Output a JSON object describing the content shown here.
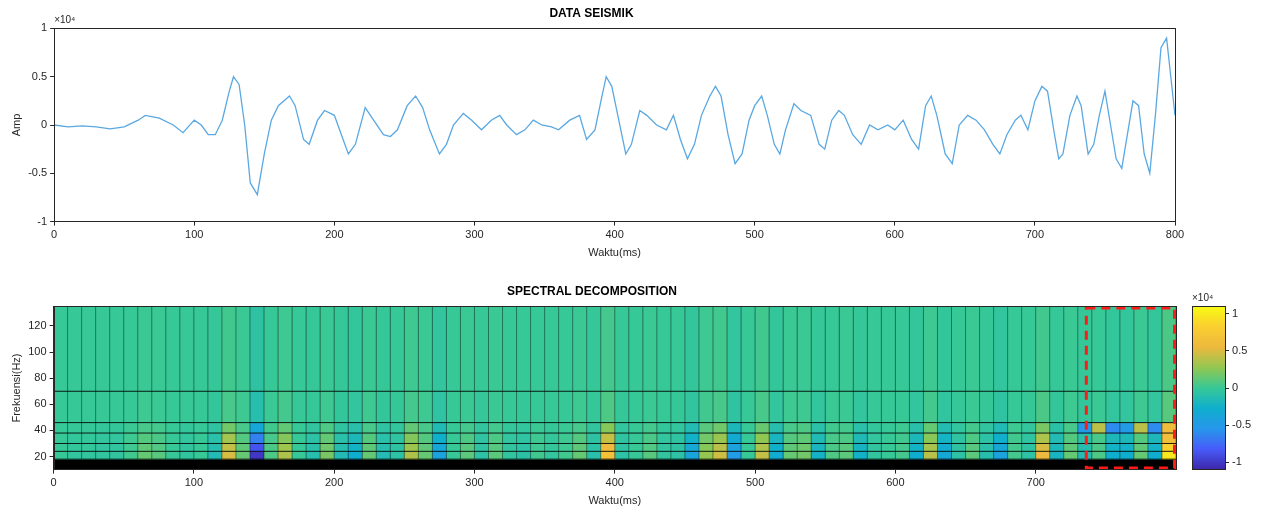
{
  "chart_data": [
    {
      "type": "line",
      "title": "DATA SEISMIK",
      "x_label": "Waktu(ms)",
      "y_label": "Amp",
      "y_multiplier_label": "×10⁴",
      "color": "#5aa8e2",
      "x": [
        0,
        10,
        20,
        30,
        40,
        50,
        60,
        65,
        75,
        85,
        92,
        100,
        105,
        110,
        115,
        120,
        125,
        128,
        132,
        136,
        140,
        145,
        150,
        155,
        160,
        168,
        172,
        178,
        182,
        188,
        193,
        200,
        205,
        210,
        215,
        222,
        228,
        235,
        240,
        245,
        252,
        258,
        263,
        268,
        275,
        280,
        285,
        292,
        298,
        305,
        312,
        318,
        323,
        330,
        336,
        342,
        348,
        355,
        360,
        368,
        375,
        380,
        386,
        391,
        394,
        398,
        403,
        408,
        412,
        418,
        423,
        430,
        437,
        442,
        447,
        452,
        457,
        462,
        468,
        472,
        476,
        481,
        486,
        491,
        496,
        500,
        505,
        509,
        514,
        518,
        522,
        528,
        533,
        540,
        546,
        550,
        555,
        560,
        564,
        570,
        576,
        582,
        588,
        595,
        600,
        606,
        612,
        617,
        622,
        626,
        630,
        636,
        641,
        646,
        652,
        658,
        664,
        670,
        675,
        680,
        686,
        690,
        695,
        700,
        705,
        709,
        714,
        717,
        720,
        725,
        730,
        733,
        738,
        742,
        746,
        750,
        754,
        758,
        762,
        766,
        770,
        774,
        778,
        782,
        786,
        790,
        794,
        797,
        800
      ],
      "values": [
        0,
        -0.02,
        -0.01,
        -0.02,
        -0.04,
        -0.02,
        0.05,
        0.1,
        0.07,
        0,
        -0.08,
        0.05,
        0,
        -0.1,
        -0.1,
        0.05,
        0.35,
        0.5,
        0.42,
        0,
        -0.6,
        -0.72,
        -0.3,
        0.05,
        0.2,
        0.3,
        0.2,
        -0.15,
        -0.2,
        0.05,
        0.15,
        0.1,
        -0.1,
        -0.3,
        -0.2,
        0.18,
        0.05,
        -0.1,
        -0.12,
        -0.05,
        0.2,
        0.3,
        0.18,
        -0.05,
        -0.3,
        -0.2,
        0,
        0.12,
        0.05,
        -0.05,
        0.05,
        0.1,
        0,
        -0.1,
        -0.05,
        0.05,
        0,
        -0.02,
        -0.05,
        0.05,
        0.1,
        -0.15,
        -0.05,
        0.3,
        0.5,
        0.4,
        0.05,
        -0.3,
        -0.2,
        0.15,
        0.1,
        0,
        -0.05,
        0.1,
        -0.15,
        -0.35,
        -0.2,
        0.1,
        0.3,
        0.4,
        0.3,
        -0.1,
        -0.4,
        -0.3,
        0.05,
        0.2,
        0.3,
        0.1,
        -0.2,
        -0.3,
        -0.05,
        0.22,
        0.15,
        0.1,
        -0.2,
        -0.25,
        0.05,
        0.15,
        0.1,
        -0.1,
        -0.2,
        0,
        -0.05,
        0,
        -0.05,
        0.05,
        -0.15,
        -0.25,
        0.2,
        0.3,
        0.1,
        -0.3,
        -0.4,
        0,
        0.1,
        0.05,
        -0.05,
        -0.2,
        -0.3,
        -0.1,
        0.05,
        0.1,
        -0.05,
        0.25,
        0.4,
        0.35,
        -0.1,
        -0.35,
        -0.3,
        0.1,
        0.3,
        0.2,
        -0.3,
        -0.2,
        0.1,
        0.35,
        0,
        -0.35,
        -0.45,
        -0.1,
        0.25,
        0.2,
        -0.3,
        -0.5,
        0.1,
        0.8,
        0.9,
        0.5,
        0.1
      ],
      "xlim": [
        0,
        800
      ],
      "xticks": [
        0,
        100,
        200,
        300,
        400,
        500,
        600,
        700,
        800
      ],
      "ylim": [
        -1,
        1
      ],
      "yticks": [
        -1,
        -0.5,
        0,
        0.5,
        1
      ],
      "grid": false
    },
    {
      "type": "heatmap",
      "title": "SPECTRAL DECOMPOSITION",
      "x_label": "Waktu(ms)",
      "y_label": "Frekuensi(Hz)",
      "x_bins": [
        0,
        10,
        20,
        30,
        40,
        50,
        60,
        70,
        80,
        90,
        100,
        110,
        120,
        130,
        140,
        150,
        160,
        170,
        180,
        190,
        200,
        210,
        220,
        230,
        240,
        250,
        260,
        270,
        280,
        290,
        300,
        310,
        320,
        330,
        340,
        350,
        360,
        370,
        380,
        390,
        400,
        410,
        420,
        430,
        440,
        450,
        460,
        470,
        480,
        490,
        500,
        510,
        520,
        530,
        540,
        550,
        560,
        570,
        580,
        590,
        600,
        610,
        620,
        630,
        640,
        650,
        660,
        670,
        680,
        690,
        700,
        710,
        720,
        730,
        740,
        750,
        760,
        770,
        780,
        790,
        800
      ],
      "y_bins": [
        18,
        24,
        30,
        38,
        46,
        70,
        135
      ],
      "cells": [
        [
          0,
          -0.03,
          -0.03,
          -0.04,
          -0.04,
          0.03,
          0.14,
          0.1,
          0,
          -0.04,
          0,
          -0.14,
          0.49,
          0.14,
          -1.01,
          0.07,
          0.36,
          0,
          -0.11,
          0.2,
          -0.14,
          -0.28,
          0.14,
          -0.14,
          -0.07,
          0.36,
          0.14,
          -0.42,
          0,
          0.11,
          -0.07,
          0.11,
          -0.04,
          -0.08,
          0.03,
          -0.03,
          0.03,
          0.14,
          -0.1,
          0.67,
          -0.07,
          0,
          0.1,
          -0.04,
          -0.07,
          -0.39,
          0.28,
          0.46,
          -0.49,
          0,
          0.42,
          -0.31,
          0.14,
          0.18,
          -0.24,
          0.07,
          0.11,
          -0.25,
          -0.04,
          0,
          0.04,
          -0.28,
          0.39,
          -0.35,
          -0.07,
          0.11,
          -0.11,
          -0.42,
          0.04,
          -0.07,
          0.56,
          -0.21,
          0.14,
          -0.14,
          0.07,
          -0.28,
          -0.28,
          0.14,
          -0.28,
          0.98
        ],
        [
          0,
          -0.02,
          -0.02,
          -0.04,
          -0.04,
          0.02,
          0.12,
          0.08,
          0,
          -0.04,
          0,
          -0.12,
          0.42,
          0.12,
          -0.86,
          0.06,
          0.31,
          0,
          -0.1,
          0.17,
          -0.12,
          -0.24,
          0.12,
          -0.12,
          -0.06,
          0.31,
          0.12,
          -0.36,
          0,
          0.1,
          -0.06,
          0.1,
          -0.04,
          -0.07,
          0.02,
          -0.02,
          0.02,
          0.12,
          -0.08,
          0.58,
          -0.06,
          0,
          0.08,
          -0.04,
          -0.06,
          -0.34,
          0.24,
          0.4,
          -0.42,
          0,
          0.36,
          -0.26,
          0.12,
          0.16,
          -0.2,
          0.06,
          0.1,
          -0.22,
          -0.04,
          0,
          0.04,
          -0.24,
          0.34,
          -0.3,
          -0.06,
          0.1,
          -0.1,
          -0.36,
          0.04,
          -0.06,
          0.48,
          -0.18,
          0.12,
          -0.12,
          0.06,
          -0.24,
          -0.24,
          0.12,
          -0.24,
          0.84
        ],
        [
          0,
          -0.02,
          -0.02,
          -0.03,
          -0.03,
          0.02,
          0.09,
          0.06,
          0,
          -0.03,
          0,
          -0.09,
          0.32,
          0.09,
          -0.65,
          0.05,
          0.23,
          0,
          -0.07,
          0.13,
          -0.09,
          -0.18,
          0.09,
          -0.09,
          -0.05,
          0.23,
          0.09,
          -0.27,
          0,
          0.07,
          -0.05,
          0.07,
          -0.03,
          -0.05,
          0.02,
          -0.02,
          0.02,
          0.09,
          -0.06,
          0.43,
          -0.05,
          0,
          0.06,
          -0.03,
          -0.05,
          -0.25,
          0.18,
          0.3,
          -0.32,
          0,
          0.27,
          -0.2,
          0.09,
          0.12,
          -0.15,
          0.05,
          0.07,
          -0.16,
          -0.03,
          0,
          0.03,
          -0.18,
          0.25,
          -0.23,
          -0.05,
          0.07,
          -0.07,
          -0.27,
          0.03,
          -0.05,
          0.36,
          -0.14,
          0.09,
          -0.09,
          0.05,
          -0.18,
          -0.18,
          0.09,
          -0.18,
          0.63
        ],
        [
          0,
          -0.01,
          -0.01,
          -0.02,
          -0.02,
          0.01,
          0.05,
          0.04,
          0,
          -0.02,
          0,
          -0.05,
          0.18,
          0.05,
          -0.36,
          0.03,
          0.13,
          0,
          -0.04,
          0.07,
          -0.05,
          -0.1,
          0.05,
          -0.05,
          -0.03,
          0.13,
          0.05,
          -0.15,
          0,
          0.04,
          -0.03,
          0.04,
          -0.02,
          -0.03,
          0.01,
          -0.01,
          0.01,
          0.05,
          -0.04,
          0.24,
          -0.03,
          0,
          0.04,
          -0.02,
          -0.03,
          -0.14,
          0.1,
          0.17,
          -0.18,
          0,
          0.15,
          -0.11,
          0.05,
          0.07,
          -0.09,
          0.03,
          0.04,
          -0.09,
          -0.02,
          0,
          0.02,
          -0.1,
          0.14,
          -0.13,
          -0.03,
          0.04,
          -0.04,
          -0.15,
          0.02,
          -0.03,
          0.2,
          -0.08,
          0.05,
          -0.5,
          0.4,
          -0.6,
          -0.5,
          0.4,
          -0.6,
          0.6
        ],
        [
          0,
          0,
          0,
          0,
          0,
          0,
          0.02,
          0.01,
          0,
          0,
          0,
          -0.02,
          0.05,
          0.02,
          -0.11,
          0.01,
          0.04,
          0,
          -0.01,
          0.02,
          -0.02,
          -0.03,
          0.02,
          -0.02,
          -0.01,
          0.04,
          0.02,
          -0.05,
          0,
          0.01,
          -0.01,
          0.01,
          0,
          -0.01,
          0,
          0,
          0,
          0.02,
          -0.01,
          0.07,
          -0.01,
          0,
          0.01,
          0,
          -0.01,
          -0.04,
          0.03,
          0.05,
          -0.05,
          0,
          0.05,
          -0.03,
          0.02,
          0.02,
          -0.03,
          0.01,
          0.01,
          -0.03,
          0,
          0,
          0,
          -0.03,
          0.04,
          -0.04,
          -0.01,
          0.01,
          -0.01,
          -0.05,
          0,
          -0.01,
          0.06,
          -0.02,
          0.02,
          -0.02,
          0.01,
          -0.03,
          -0.03,
          0.02,
          -0.03,
          0.1
        ],
        [
          0,
          0,
          0,
          0,
          0,
          0,
          0.01,
          0.01,
          0,
          0,
          0,
          -0.01,
          0.03,
          0.01,
          -0.06,
          0,
          0.02,
          0,
          -0.01,
          0.01,
          -0.01,
          -0.02,
          0.01,
          -0.01,
          0,
          0.02,
          0.01,
          -0.03,
          0,
          0.01,
          0,
          0.01,
          0,
          0,
          0,
          0,
          0,
          0.01,
          -0.01,
          0.04,
          0,
          0,
          0.01,
          0,
          0,
          -0.02,
          0.02,
          0.03,
          -0.03,
          0,
          0.03,
          -0.02,
          0.01,
          0.01,
          -0.01,
          0,
          0.01,
          -0.01,
          0,
          0,
          0,
          -0.02,
          0.02,
          -0.02,
          0,
          0.01,
          -0.01,
          -0.03,
          0,
          0,
          0.03,
          -0.01,
          0.01,
          -0.01,
          0,
          -0.02,
          -0.02,
          0.01,
          -0.02,
          0.06
        ]
      ],
      "xlim": [
        0,
        800
      ],
      "xticks": [
        0,
        100,
        200,
        300,
        400,
        500,
        600,
        700
      ],
      "ylim": [
        10,
        135
      ],
      "yticks": [
        20,
        40,
        60,
        80,
        100,
        120
      ],
      "colorbar_range": [
        -1.1,
        1.1
      ],
      "colorbar_ticks": [
        -1,
        -0.5,
        0,
        0.5,
        1
      ],
      "colorbar_label": "×10⁴",
      "highlight_x": [
        735,
        800
      ],
      "grid": false
    }
  ]
}
